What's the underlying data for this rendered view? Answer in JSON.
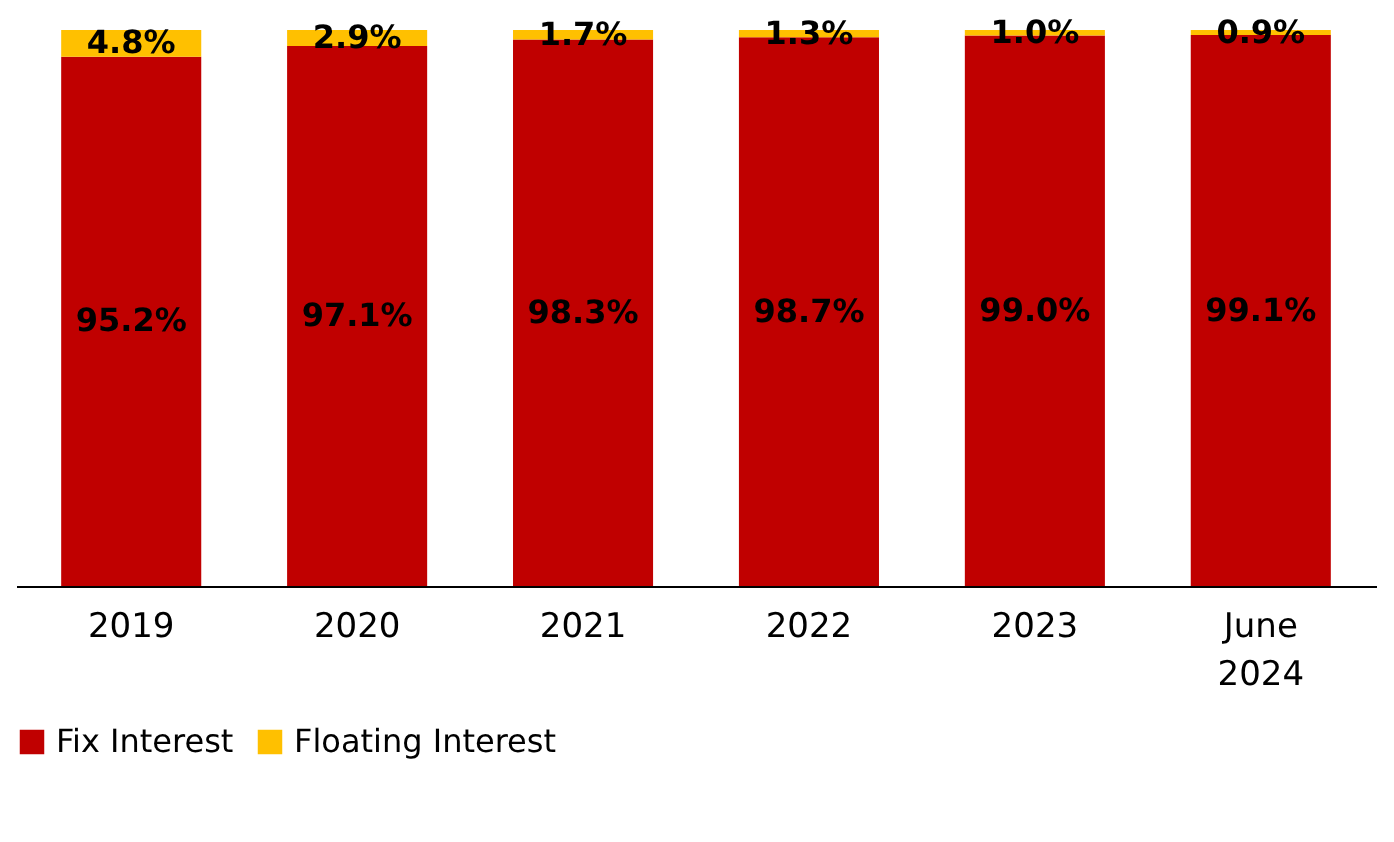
{
  "chart_data": {
    "type": "bar",
    "stacked": true,
    "legend": "bottom",
    "categories": [
      "2019",
      "2020",
      "2021",
      "2022",
      "2023",
      "June 2024"
    ],
    "series": [
      {
        "name": "Fix Interest",
        "color": "#c00000",
        "values": [
          95.2,
          97.1,
          98.3,
          98.7,
          99.0,
          99.1
        ],
        "value_labels": [
          "95.2%",
          "97.1%",
          "98.3%",
          "98.7%",
          "99.0%",
          "99.1%"
        ]
      },
      {
        "name": "Floating Interest",
        "color": "#ffc000",
        "values": [
          4.8,
          2.9,
          1.7,
          1.3,
          1.0,
          0.9
        ],
        "value_labels": [
          "4.8%",
          "2.9%",
          "1.7%",
          "1.3%",
          "1.0%",
          "0.9%"
        ]
      }
    ]
  }
}
